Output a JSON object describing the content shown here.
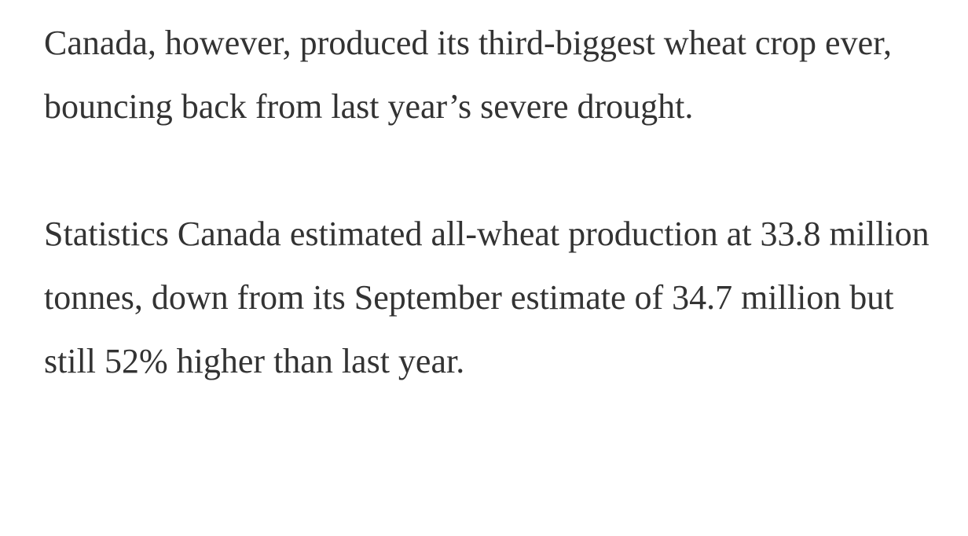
{
  "article": {
    "paragraphs": [
      "Canada, however, produced its third-biggest wheat crop ever, bouncing back from last year’s severe drought.",
      "Statistics Canada estimated all-wheat production at 33.8 million tonnes, down from its September estimate of 34.7 million but still 52% higher than last year."
    ]
  },
  "colors": {
    "background": "#ffffff",
    "text": "#333333"
  }
}
